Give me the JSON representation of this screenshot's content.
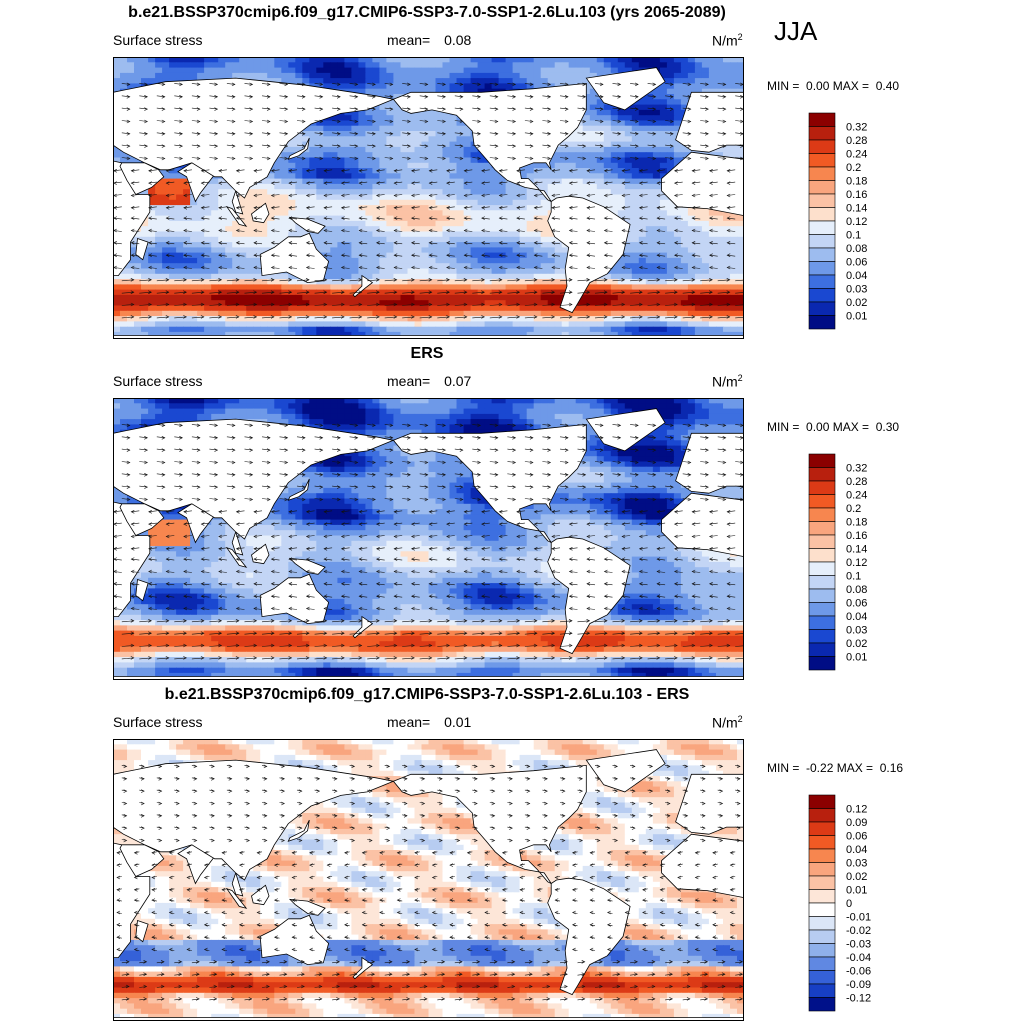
{
  "season": "JJA",
  "chart_data": [
    {
      "type": "heatmap",
      "title": "b.e21.BSSP370cmip6.f09_g17.CMIP6-SSP3-7.0-SSP1-2.6Lu.103 (yrs 2065-2089)",
      "left_label": "Surface stress",
      "mean_label": "mean=",
      "mean_value": "0.08",
      "units": "N/m",
      "units_sup": "2",
      "min_label": "MIN =",
      "min_value": "0.00",
      "max_label": "MAX =",
      "max_value": "0.40",
      "colorbar": {
        "levels": [
          "0.32",
          "0.28",
          "0.24",
          "0.2",
          "0.18",
          "0.16",
          "0.14",
          "0.12",
          "0.1",
          "0.08",
          "0.06",
          "0.04",
          "0.03",
          "0.02",
          "0.01"
        ],
        "colors": [
          "#8b0000",
          "#b8200e",
          "#dc3a16",
          "#f15a24",
          "#f7864f",
          "#f9a57e",
          "#fbc2a5",
          "#fde0cc",
          "#e6effb",
          "#c3d5f5",
          "#9dbcef",
          "#6e99e8",
          "#3d6fe0",
          "#1a48d1",
          "#0a28b0",
          "#000d85"
        ]
      },
      "mode": "abs"
    },
    {
      "type": "heatmap",
      "title": "ERS",
      "left_label": "Surface stress",
      "mean_label": "mean=",
      "mean_value": "0.07",
      "units": "N/m",
      "units_sup": "2",
      "min_label": "MIN =",
      "min_value": "0.00",
      "max_label": "MAX =",
      "max_value": "0.30",
      "colorbar": {
        "levels": [
          "0.32",
          "0.28",
          "0.24",
          "0.2",
          "0.18",
          "0.16",
          "0.14",
          "0.12",
          "0.1",
          "0.08",
          "0.06",
          "0.04",
          "0.03",
          "0.02",
          "0.01"
        ],
        "colors": [
          "#8b0000",
          "#b8200e",
          "#dc3a16",
          "#f15a24",
          "#f7864f",
          "#f9a57e",
          "#fbc2a5",
          "#fde0cc",
          "#e6effb",
          "#c3d5f5",
          "#9dbcef",
          "#6e99e8",
          "#3d6fe0",
          "#1a48d1",
          "#0a28b0",
          "#000d85"
        ]
      },
      "mode": "obs"
    },
    {
      "type": "heatmap",
      "title": "b.e21.BSSP370cmip6.f09_g17.CMIP6-SSP3-7.0-SSP1-2.6Lu.103 - ERS",
      "left_label": "Surface stress",
      "mean_label": "mean=",
      "mean_value": "0.01",
      "units": "N/m",
      "units_sup": "2",
      "min_label": "MIN =",
      "min_value": "-0.22",
      "max_label": "MAX =",
      "max_value": "0.16",
      "colorbar": {
        "levels": [
          "0.12",
          "0.09",
          "0.06",
          "0.04",
          "0.03",
          "0.02",
          "0.01",
          "0",
          "-0.01",
          "-0.02",
          "-0.03",
          "-0.04",
          "-0.06",
          "-0.09",
          "-0.12"
        ],
        "colors": [
          "#8b0000",
          "#b8200e",
          "#dc3a16",
          "#f15a24",
          "#f7864f",
          "#f9a57e",
          "#fbc2a5",
          "#fde6d8",
          "#ffffff",
          "#dbe6f7",
          "#b7ccf1",
          "#8fb0ea",
          "#6088e2",
          "#3561d8",
          "#173fc4",
          "#00118a"
        ]
      },
      "mode": "diff"
    }
  ]
}
